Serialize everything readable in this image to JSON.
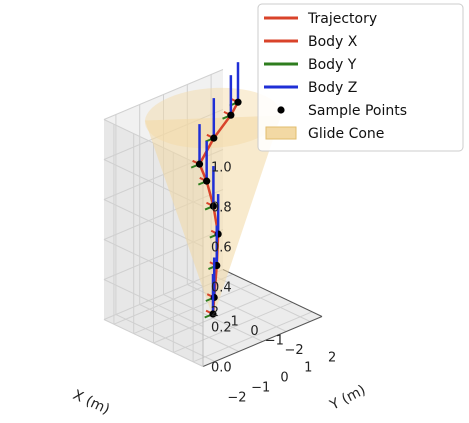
{
  "chart_data": {
    "type": "line3d",
    "xlabel": "X (m)",
    "ylabel": "Y (m)",
    "zlabel": "",
    "xlim": [
      -2.5,
      2.5
    ],
    "ylim": [
      -2.5,
      2.5
    ],
    "zlim": [
      0.0,
      1.0
    ],
    "x_ticks": [
      "2",
      "1",
      "0",
      "−1",
      "−2"
    ],
    "y_ticks": [
      "−2",
      "−1",
      "0",
      "1",
      "2"
    ],
    "z_ticks": [
      "0.0",
      "0.2",
      "0.4",
      "0.6",
      "0.8",
      "1.0"
    ],
    "grid": true,
    "legend_position": "top-right",
    "colors": {
      "trajectory": "#d9432a",
      "body_x": "#d9432a",
      "body_y": "#2e7d1e",
      "body_z": "#1f2fd6",
      "sample": "#000000",
      "cone": "#f3d9a4"
    },
    "legend": [
      {
        "label": "Trajectory",
        "kind": "line",
        "color": "#d9432a"
      },
      {
        "label": "Body X",
        "kind": "line",
        "color": "#d9432a"
      },
      {
        "label": "Body Y",
        "kind": "line",
        "color": "#2e7d1e"
      },
      {
        "label": "Body Z",
        "kind": "line",
        "color": "#1f2fd6"
      },
      {
        "label": "Sample Points",
        "kind": "dot",
        "color": "#000000"
      },
      {
        "label": "Glide Cone",
        "kind": "patch",
        "color": "#f3d9a4"
      }
    ],
    "trajectory": [
      {
        "x": 0.3,
        "y": 1.3,
        "z": 1.0
      },
      {
        "x": 0.3,
        "y": 1.0,
        "z": 0.95
      },
      {
        "x": 0.2,
        "y": 0.2,
        "z": 0.88
      },
      {
        "x": 0.2,
        "y": -0.4,
        "z": 0.78
      },
      {
        "x": 0.2,
        "y": -0.1,
        "z": 0.68
      },
      {
        "x": 0.1,
        "y": 0.1,
        "z": 0.55
      },
      {
        "x": 0.1,
        "y": 0.3,
        "z": 0.4
      },
      {
        "x": 0.05,
        "y": 0.2,
        "z": 0.25
      },
      {
        "x": 0.0,
        "y": 0.05,
        "z": 0.1
      },
      {
        "x": 0.0,
        "y": 0.0,
        "z": 0.02
      }
    ],
    "sample_points": [
      {
        "x": 0.3,
        "y": 1.3,
        "z": 1.0
      },
      {
        "x": 0.3,
        "y": 1.0,
        "z": 0.95
      },
      {
        "x": 0.2,
        "y": 0.2,
        "z": 0.88
      },
      {
        "x": 0.2,
        "y": -0.4,
        "z": 0.78
      },
      {
        "x": 0.2,
        "y": -0.1,
        "z": 0.68
      },
      {
        "x": 0.1,
        "y": 0.1,
        "z": 0.55
      },
      {
        "x": 0.1,
        "y": 0.3,
        "z": 0.4
      },
      {
        "x": 0.05,
        "y": 0.2,
        "z": 0.25
      },
      {
        "x": 0.0,
        "y": 0.05,
        "z": 0.1
      },
      {
        "x": 0.0,
        "y": 0.0,
        "z": 0.02
      }
    ],
    "glide_cone": {
      "apex": {
        "x": 0,
        "y": 0,
        "z": 0
      },
      "top_radius": 2.2,
      "top_z": 1.0
    }
  }
}
